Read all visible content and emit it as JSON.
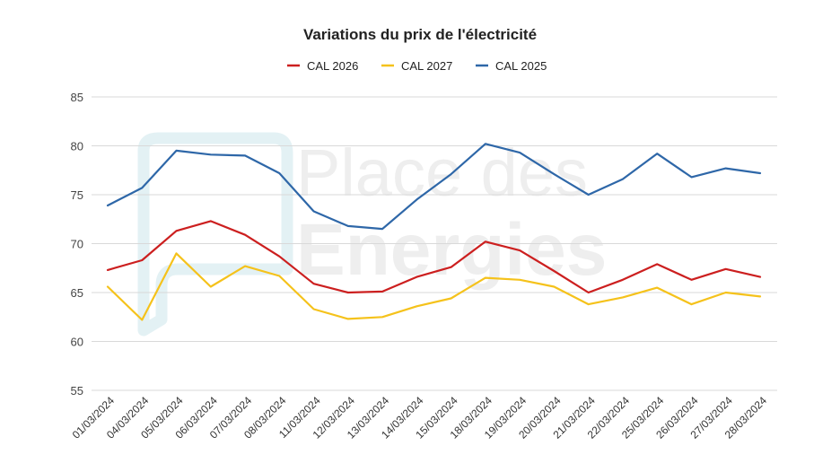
{
  "watermark": {
    "line1": "Place des",
    "line2": "Energies"
  },
  "chart_data": {
    "type": "line",
    "title": "Variations du prix de l'électricité",
    "xlabel": "",
    "ylabel": "",
    "ylim": [
      55,
      85
    ],
    "yticks": [
      55,
      60,
      65,
      70,
      75,
      80,
      85
    ],
    "grid": true,
    "legend_position": "top-center",
    "categories": [
      "01/03/2024",
      "04/03/2024",
      "05/03/2024",
      "06/03/2024",
      "07/03/2024",
      "08/03/2024",
      "11/03/2024",
      "12/03/2024",
      "13/03/2024",
      "14/03/2024",
      "15/03/2024",
      "18/03/2024",
      "19/03/2024",
      "20/03/2024",
      "21/03/2024",
      "22/03/2024",
      "25/03/2024",
      "26/03/2024",
      "27/03/2024",
      "28/03/2024"
    ],
    "series": [
      {
        "name": "CAL 2026",
        "color": "#cc1f1f",
        "values": [
          67.3,
          68.3,
          71.3,
          72.3,
          70.9,
          68.7,
          65.9,
          65.0,
          65.1,
          66.6,
          67.6,
          70.2,
          69.3,
          67.2,
          65.0,
          66.3,
          67.9,
          66.3,
          67.4,
          66.6
        ]
      },
      {
        "name": "CAL 2027",
        "color": "#f5c21b",
        "values": [
          65.6,
          62.2,
          69.0,
          65.6,
          67.7,
          66.7,
          63.3,
          62.3,
          62.5,
          63.6,
          64.4,
          66.5,
          66.3,
          65.6,
          63.8,
          64.5,
          65.5,
          63.8,
          65.0,
          64.6
        ]
      },
      {
        "name": "CAL 2025",
        "color": "#2e67a8",
        "values": [
          73.9,
          75.7,
          79.5,
          79.1,
          79.0,
          77.2,
          73.3,
          71.8,
          71.5,
          74.5,
          77.1,
          80.2,
          79.3,
          77.1,
          75.0,
          76.6,
          79.2,
          76.8,
          77.7,
          77.2
        ]
      }
    ]
  }
}
